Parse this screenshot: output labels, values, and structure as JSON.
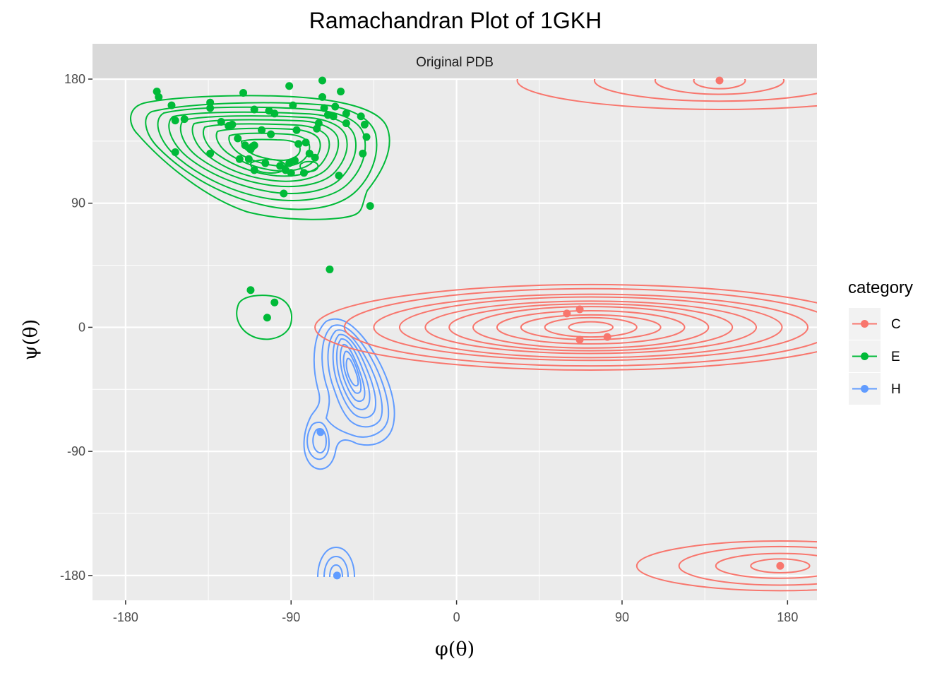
{
  "chart_data": {
    "type": "scatter",
    "title": "Ramachandran Plot of 1GKH",
    "facet": "Original PDB",
    "xlabel": "φ(θ)",
    "ylabel": "ψ(θ)",
    "xlim": [
      -198,
      196
    ],
    "ylim": [
      -198,
      180
    ],
    "x_ticks": [
      -180,
      -90,
      0,
      90,
      180
    ],
    "y_ticks": [
      -180,
      -90,
      0,
      90,
      180
    ],
    "x_tick_labels": [
      "-180",
      "-90",
      "0",
      "90",
      "180"
    ],
    "y_tick_labels": [
      "-180",
      "-90",
      "0",
      "90",
      "180"
    ],
    "grid": true,
    "legend": {
      "title": "category",
      "position": "right",
      "entries": [
        "C",
        "E",
        "H"
      ]
    },
    "colors": {
      "C": "#F8766D",
      "E": "#00BA38",
      "H": "#619CFF",
      "panel": "#EBEBEB",
      "strip": "#D9D9D9",
      "grid": "#FFFFFF"
    },
    "series": [
      {
        "name": "C",
        "points": [
          [
            143,
            179
          ],
          [
            176,
            -173
          ],
          [
            60,
            10
          ],
          [
            67,
            13
          ],
          [
            67,
            -9
          ],
          [
            82,
            -7
          ]
        ],
        "contours": [
          {
            "cx": 73,
            "cy": 0,
            "levels": [
              {
                "rx": 12,
                "ry": 4
              },
              {
                "rx": 25,
                "ry": 7
              },
              {
                "rx": 38,
                "ry": 9
              },
              {
                "rx": 51,
                "ry": 12
              },
              {
                "rx": 64,
                "ry": 15
              },
              {
                "rx": 77,
                "ry": 17
              },
              {
                "rx": 90,
                "ry": 19
              },
              {
                "rx": 104,
                "ry": 22
              },
              {
                "rx": 118,
                "ry": 24
              },
              {
                "rx": 134,
                "ry": 28
              },
              {
                "rx": 150,
                "ry": 31
              }
            ]
          },
          {
            "cx": 143,
            "cy": 179,
            "levels": [
              {
                "rx": 14,
                "ry": 6
              },
              {
                "rx": 35,
                "ry": 10
              },
              {
                "rx": 68,
                "ry": 15
              },
              {
                "rx": 110,
                "ry": 21
              }
            ],
            "clip_top": 180
          },
          {
            "cx": 176,
            "cy": -173,
            "levels": [
              {
                "rx": 16,
                "ry": 5
              },
              {
                "rx": 35,
                "ry": 9
              },
              {
                "rx": 55,
                "ry": 14
              },
              {
                "rx": 78,
                "ry": 18
              }
            ],
            "clip_right": 180
          }
        ]
      },
      {
        "name": "E",
        "points": [
          [
            -163,
            171
          ],
          [
            -162,
            167
          ],
          [
            -155,
            161
          ],
          [
            -153,
            150
          ],
          [
            -148,
            151
          ],
          [
            -153,
            127
          ],
          [
            -134,
            163
          ],
          [
            -134,
            159
          ],
          [
            -134,
            126
          ],
          [
            -128,
            149
          ],
          [
            -124,
            146
          ],
          [
            -122,
            147
          ],
          [
            -119,
            137
          ],
          [
            -115,
            132
          ],
          [
            -112,
            129
          ],
          [
            -111,
            131
          ],
          [
            -110,
            132
          ],
          [
            -118,
            122
          ],
          [
            -113,
            122
          ],
          [
            -110,
            114
          ],
          [
            -116,
            170
          ],
          [
            -110,
            158
          ],
          [
            -106,
            143
          ],
          [
            -104,
            119
          ],
          [
            -102,
            157
          ],
          [
            -101,
            140
          ],
          [
            -99,
            155
          ],
          [
            -93,
            114
          ],
          [
            -90,
            112
          ],
          [
            -91,
            119
          ],
          [
            -88,
            121
          ],
          [
            -83,
            112
          ],
          [
            -91,
            175
          ],
          [
            -89,
            161
          ],
          [
            -87,
            143
          ],
          [
            -86,
            133
          ],
          [
            -82,
            134
          ],
          [
            -94,
            97
          ],
          [
            -96,
            117
          ],
          [
            -77,
            123
          ],
          [
            -80,
            126
          ],
          [
            -76,
            144
          ],
          [
            -75,
            148
          ],
          [
            -72,
            159
          ],
          [
            -70,
            154
          ],
          [
            -73,
            167
          ],
          [
            -66,
            160
          ],
          [
            -67,
            153
          ],
          [
            -63,
            171
          ],
          [
            -60,
            155
          ],
          [
            -60,
            148
          ],
          [
            -73,
            179
          ],
          [
            -64,
            110
          ],
          [
            -52,
            153
          ],
          [
            -50,
            147
          ],
          [
            -51,
            126
          ],
          [
            -49,
            138
          ],
          [
            -47,
            88
          ],
          [
            -69,
            42
          ],
          [
            -112,
            27
          ],
          [
            -99,
            18
          ],
          [
            -103,
            7
          ]
        ],
        "contours": []
      },
      {
        "name": "H",
        "points": [
          [
            -74,
            -76
          ],
          [
            -65,
            -180
          ]
        ],
        "contours": []
      }
    ]
  }
}
